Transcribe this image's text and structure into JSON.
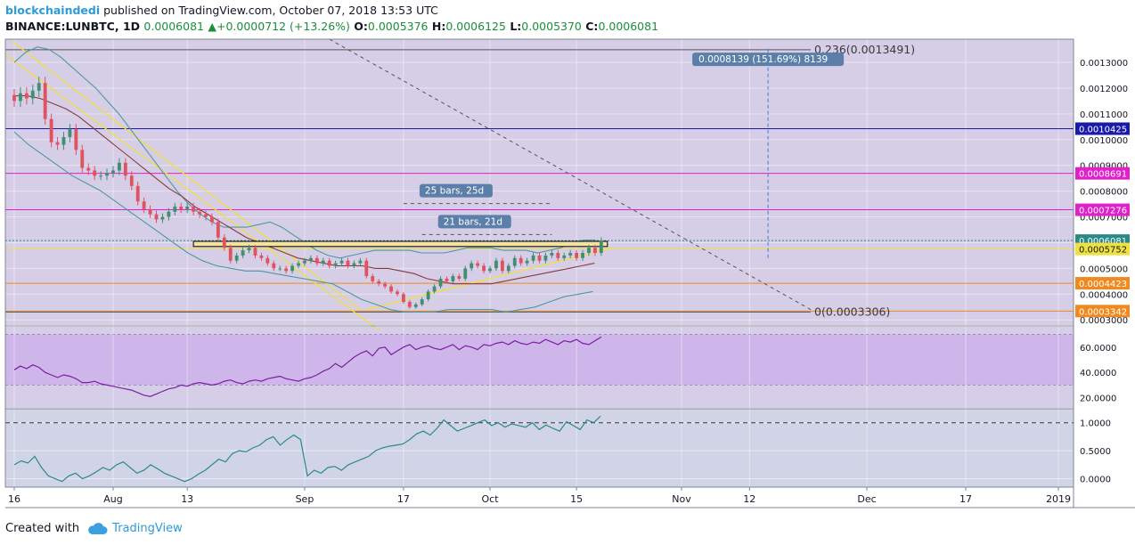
{
  "header": {
    "user": "blockchaindedi",
    "published_text": "published on TradingView.com, October 07, 2018 13:53 UTC",
    "symbol_line": "BINANCE:LUNBTC, 1D",
    "last": "0.0006081",
    "change": "+0.0000712 (+13.26%)",
    "o_label": "O:",
    "o": "0.0005376",
    "h_label": "H:",
    "h": "0.0006125",
    "l_label": "L:",
    "l": "0.0005370",
    "c_label": "C:",
    "c": "0.0006081"
  },
  "footer": {
    "created_with": "Created with",
    "brand": "TradingView"
  },
  "colors": {
    "background": "#d6cde6",
    "up": "#3f8f72",
    "down": "#e05260",
    "bollinger": "#4b9aa0",
    "ma": "#8b3a3a",
    "rsi": "#7b1fa2",
    "osc": "#2a8a8a",
    "trend": "#f0e040"
  },
  "chart_data": {
    "type": "candlestick",
    "price_axis": {
      "min": 0.00028,
      "max": 0.00139,
      "ticks": [
        "0.0013000",
        "0.0012000",
        "0.0011000",
        "0.0010000",
        "0.0009000",
        "0.0008000",
        "0.0007000",
        "0.0006000",
        "0.0005000",
        "0.0004000",
        "0.0003000"
      ],
      "tick_values": [
        0.0013,
        0.0012,
        0.0011,
        0.001,
        0.0009,
        0.0008,
        0.0007,
        0.0006,
        0.0005,
        0.0004,
        0.0003
      ]
    },
    "time_axis": {
      "start": "2018-07-16",
      "end": "2019-01-02",
      "labels": [
        {
          "text": "16",
          "date": "2018-07-16"
        },
        {
          "text": "Aug",
          "date": "2018-08-01"
        },
        {
          "text": "13",
          "date": "2018-08-13"
        },
        {
          "text": "Sep",
          "date": "2018-09-01"
        },
        {
          "text": "17",
          "date": "2018-09-17"
        },
        {
          "text": "Oct",
          "date": "2018-10-01"
        },
        {
          "text": "15",
          "date": "2018-10-15"
        },
        {
          "text": "Nov",
          "date": "2018-11-01"
        },
        {
          "text": "12",
          "date": "2018-11-12"
        },
        {
          "text": "Dec",
          "date": "2018-12-01"
        },
        {
          "text": "17",
          "date": "2018-12-17"
        },
        {
          "text": "2019",
          "date": "2019-01-01"
        }
      ]
    },
    "close_series": [
      0.00115,
      0.00118,
      0.00116,
      0.00119,
      0.00122,
      0.00108,
      0.00099,
      0.00098,
      0.00101,
      0.00104,
      0.00096,
      0.00089,
      0.00088,
      0.00086,
      0.00086,
      0.00087,
      0.00088,
      0.00091,
      0.00086,
      0.00082,
      0.00076,
      0.00073,
      0.00071,
      0.00069,
      0.0007,
      0.00072,
      0.00074,
      0.00073,
      0.00074,
      0.00072,
      0.00071,
      0.0007,
      0.00068,
      0.00062,
      0.00058,
      0.00053,
      0.00055,
      0.00057,
      0.00058,
      0.00055,
      0.00054,
      0.00052,
      0.0005,
      0.0005,
      0.00049,
      0.00051,
      0.00052,
      0.00053,
      0.00054,
      0.00052,
      0.00053,
      0.00051,
      0.00052,
      0.00053,
      0.00051,
      0.00052,
      0.00053,
      0.00047,
      0.00045,
      0.00044,
      0.00043,
      0.00041,
      0.0004,
      0.00037,
      0.00035,
      0.00036,
      0.00038,
      0.00041,
      0.00043,
      0.00046,
      0.00045,
      0.00047,
      0.00046,
      0.0005,
      0.00052,
      0.00051,
      0.00049,
      0.0005,
      0.00053,
      0.00049,
      0.00051,
      0.00054,
      0.00052,
      0.00053,
      0.00055,
      0.00053,
      0.00055,
      0.00056,
      0.00054,
      0.00055,
      0.00056,
      0.00054,
      0.00056,
      0.00058,
      0.00056,
      0.0006081
    ],
    "bollinger_upper": [
      0.0013,
      0.00134,
      0.00136,
      0.00135,
      0.00132,
      0.00128,
      0.00124,
      0.0012,
      0.00115,
      0.0011,
      0.00104,
      0.00098,
      0.00092,
      0.00086,
      0.0008,
      0.00075,
      0.00071,
      0.00068,
      0.00066,
      0.00066,
      0.00066,
      0.00067,
      0.00068,
      0.00066,
      0.00063,
      0.0006,
      0.00057,
      0.00055,
      0.00054,
      0.00055,
      0.00056,
      0.00057,
      0.00057,
      0.00057,
      0.00057,
      0.00056,
      0.00056,
      0.00056,
      0.00057,
      0.00058,
      0.00058,
      0.00058,
      0.00057,
      0.00057,
      0.00057,
      0.00056,
      0.00057,
      0.00058,
      0.0006,
      0.00061,
      0.00061
    ],
    "bollinger_lower": [
      0.00103,
      0.00098,
      0.00094,
      0.0009,
      0.00086,
      0.00083,
      0.0008,
      0.00076,
      0.00072,
      0.00068,
      0.00064,
      0.0006,
      0.00056,
      0.00053,
      0.00051,
      0.0005,
      0.00049,
      0.00049,
      0.00048,
      0.00047,
      0.00046,
      0.00045,
      0.00044,
      0.00041,
      0.00038,
      0.00036,
      0.00034,
      0.00033,
      0.00033,
      0.00033,
      0.00034,
      0.00034,
      0.00034,
      0.00034,
      0.00033,
      0.00034,
      0.00035,
      0.00037,
      0.00039,
      0.0004,
      0.00041
    ],
    "moving_average": [
      0.00117,
      0.00117,
      0.00116,
      0.00114,
      0.00112,
      0.00109,
      0.00105,
      0.00101,
      0.00097,
      0.00093,
      0.00089,
      0.00085,
      0.00081,
      0.00078,
      0.00074,
      0.00071,
      0.00068,
      0.00065,
      0.00062,
      0.0006,
      0.00058,
      0.00056,
      0.00054,
      0.00053,
      0.00052,
      0.00051,
      0.00051,
      0.00051,
      0.0005,
      0.0005,
      0.00049,
      0.00048,
      0.00046,
      0.00045,
      0.00044,
      0.00044,
      0.00044,
      0.00044,
      0.00045,
      0.00046,
      0.00047,
      0.00048,
      0.00049,
      0.0005,
      0.00051,
      0.00052
    ],
    "horizontal_lines": [
      {
        "label": "0.0010425",
        "value": 0.0010425,
        "color": "#1a1aa8"
      },
      {
        "label": "0.0008691",
        "value": 0.0008691,
        "color": "#e020c8"
      },
      {
        "label": "0.0007276",
        "value": 0.0007276,
        "color": "#e020c8"
      },
      {
        "label": "0.0006081",
        "value": 0.0006081,
        "color": "#2a8a8a"
      },
      {
        "label": "0.0005752",
        "value": 0.0005752,
        "color": "#f0e040"
      },
      {
        "label": "0.0004423",
        "value": 0.0004423,
        "color": "#f08a20"
      },
      {
        "label": "0.0003342",
        "value": 0.0003342,
        "color": "#f08a20"
      }
    ],
    "fib_levels": [
      {
        "label": "0.236(0.0013491)",
        "value": 0.0013491
      },
      {
        "label": "0(0.0003306)",
        "value": 0.0003306
      }
    ],
    "measure_label": "0.0008139 (151.69%) 8139",
    "bar_labels": [
      "25 bars, 25d",
      "21 bars, 21d"
    ],
    "rsi": {
      "ticks": [
        "60.0000",
        "40.0000",
        "20.0000"
      ],
      "tick_values": [
        60,
        40,
        20
      ],
      "upper_band": 70,
      "lower_band": 30,
      "values": [
        42,
        45,
        43,
        46,
        44,
        40,
        38,
        36,
        38,
        37,
        35,
        32,
        32,
        33,
        31,
        30,
        29,
        28,
        27,
        26,
        24,
        22,
        21,
        23,
        25,
        27,
        28,
        30,
        29,
        31,
        32,
        31,
        30,
        31,
        33,
        34,
        32,
        31,
        33,
        34,
        33,
        35,
        36,
        37,
        35,
        34,
        33,
        35,
        36,
        38,
        41,
        43,
        47,
        44,
        48,
        52,
        55,
        57,
        53,
        59,
        60,
        54,
        57,
        60,
        62,
        58,
        60,
        61,
        59,
        58,
        60,
        62,
        58,
        61,
        60,
        58,
        62,
        61,
        63,
        64,
        62,
        65,
        63,
        62,
        64,
        63,
        66,
        64,
        62,
        65,
        64,
        66,
        63,
        62,
        65,
        68
      ]
    },
    "oscillator": {
      "ticks": [
        "1.0000",
        "0.5000",
        "0.0000"
      ],
      "tick_values": [
        1,
        0.5,
        0
      ],
      "dashed_level": 1,
      "values": [
        0.25,
        0.32,
        0.28,
        0.4,
        0.2,
        0.05,
        0.0,
        -0.05,
        0.05,
        0.1,
        0.0,
        0.05,
        0.12,
        0.2,
        0.15,
        0.25,
        0.3,
        0.2,
        0.1,
        0.15,
        0.25,
        0.18,
        0.1,
        0.05,
        0.0,
        -0.05,
        0.0,
        0.08,
        0.15,
        0.25,
        0.35,
        0.3,
        0.45,
        0.5,
        0.48,
        0.55,
        0.6,
        0.7,
        0.75,
        0.6,
        0.7,
        0.78,
        0.7,
        0.05,
        0.15,
        0.1,
        0.2,
        0.22,
        0.15,
        0.25,
        0.3,
        0.35,
        0.4,
        0.5,
        0.55,
        0.58,
        0.6,
        0.62,
        0.7,
        0.8,
        0.85,
        0.78,
        0.9,
        1.05,
        0.95,
        0.85,
        0.9,
        0.95,
        1.0,
        1.05,
        0.95,
        1.0,
        0.92,
        0.98,
        0.95,
        0.92,
        1.0,
        0.88,
        0.96,
        0.9,
        0.85,
        1.02,
        0.95,
        0.88,
        1.05,
        1.0,
        1.12
      ]
    }
  }
}
